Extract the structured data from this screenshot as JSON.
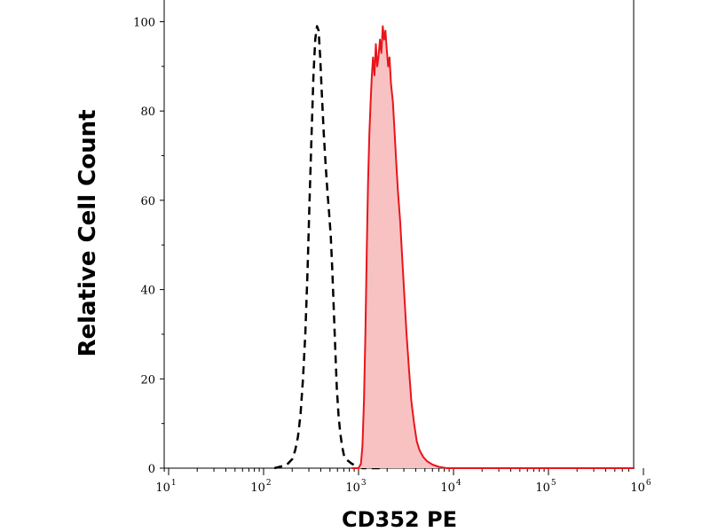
{
  "chart_data": {
    "type": "area",
    "title": "",
    "xlabel": "CD352 PE",
    "ylabel": "Relative Cell Count",
    "x_scale": "log",
    "xlim": [
      7,
      12000000
    ],
    "ylim": [
      0,
      100
    ],
    "y_ticks": [
      0,
      20,
      40,
      60,
      80,
      100
    ],
    "x_ticks": [
      {
        "value": 10,
        "base": "10",
        "exp": "1"
      },
      {
        "value": 100,
        "base": "10",
        "exp": "2"
      },
      {
        "value": 1000,
        "base": "10",
        "exp": "3"
      },
      {
        "value": 10000,
        "base": "10",
        "exp": "4"
      },
      {
        "value": 100000,
        "base": "10",
        "exp": "5"
      },
      {
        "value": 1000000,
        "base": "10",
        "exp": "6"
      }
    ],
    "grid": false,
    "legend": "none",
    "series": [
      {
        "style": "dashed",
        "color": "#000000",
        "fill": "none",
        "points": [
          [
            130,
            0
          ],
          [
            160,
            0.5
          ],
          [
            180,
            1
          ],
          [
            200,
            2
          ],
          [
            215,
            4
          ],
          [
            230,
            7
          ],
          [
            245,
            12
          ],
          [
            260,
            20
          ],
          [
            275,
            30
          ],
          [
            290,
            44
          ],
          [
            305,
            60
          ],
          [
            320,
            75
          ],
          [
            335,
            88
          ],
          [
            350,
            96
          ],
          [
            365,
            99
          ],
          [
            380,
            98
          ],
          [
            395,
            92
          ],
          [
            410,
            84
          ],
          [
            430,
            75
          ],
          [
            450,
            68
          ],
          [
            470,
            62
          ],
          [
            490,
            57
          ],
          [
            510,
            52
          ],
          [
            530,
            44
          ],
          [
            550,
            35
          ],
          [
            570,
            26
          ],
          [
            590,
            18
          ],
          [
            615,
            12
          ],
          [
            640,
            8
          ],
          [
            670,
            5
          ],
          [
            700,
            3
          ],
          [
            740,
            2
          ],
          [
            790,
            1.5
          ],
          [
            850,
            1
          ],
          [
            950,
            0.5
          ],
          [
            1100,
            0
          ],
          [
            1700,
            0
          ]
        ]
      },
      {
        "style": "solid",
        "color": "#e8151b",
        "fill": "#f8c2c3",
        "points": [
          [
            850,
            0
          ],
          [
            1000,
            0
          ],
          [
            1060,
            1
          ],
          [
            1100,
            5
          ],
          [
            1140,
            15
          ],
          [
            1180,
            30
          ],
          [
            1220,
            48
          ],
          [
            1260,
            64
          ],
          [
            1300,
            75
          ],
          [
            1340,
            82
          ],
          [
            1380,
            88
          ],
          [
            1420,
            92
          ],
          [
            1470,
            88
          ],
          [
            1520,
            95
          ],
          [
            1570,
            90
          ],
          [
            1620,
            92
          ],
          [
            1680,
            96
          ],
          [
            1740,
            93
          ],
          [
            1800,
            99
          ],
          [
            1860,
            96
          ],
          [
            1920,
            98
          ],
          [
            1980,
            94
          ],
          [
            2050,
            90
          ],
          [
            2120,
            92
          ],
          [
            2200,
            86
          ],
          [
            2300,
            82
          ],
          [
            2400,
            75
          ],
          [
            2500,
            68
          ],
          [
            2600,
            62
          ],
          [
            2750,
            55
          ],
          [
            2900,
            46
          ],
          [
            3050,
            38
          ],
          [
            3200,
            30
          ],
          [
            3400,
            22
          ],
          [
            3600,
            15
          ],
          [
            3850,
            10
          ],
          [
            4100,
            6
          ],
          [
            4400,
            4
          ],
          [
            4800,
            2.5
          ],
          [
            5300,
            1.5
          ],
          [
            6000,
            0.8
          ],
          [
            7000,
            0.3
          ],
          [
            8500,
            0
          ],
          [
            20000,
            0
          ],
          [
            1200000,
            0
          ]
        ]
      }
    ]
  }
}
